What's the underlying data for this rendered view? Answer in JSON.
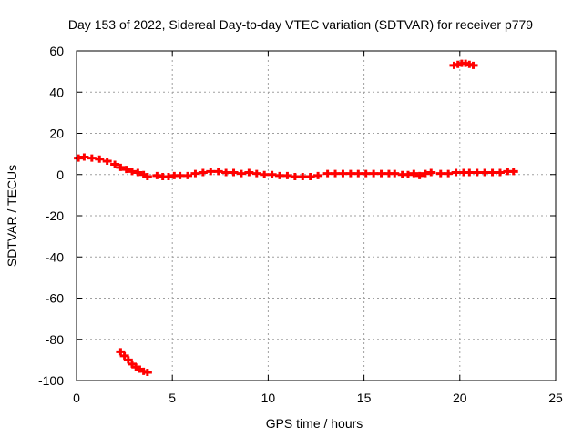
{
  "chart_data": {
    "type": "scatter",
    "title": "Day 153 of 2022, Sidereal Day-to-day VTEC variation (SDTVAR) for receiver p779",
    "xlabel": "GPS time / hours",
    "ylabel": "SDTVAR / TECUs",
    "xlim": [
      0,
      25
    ],
    "ylim": [
      -100,
      60
    ],
    "xticks": [
      0,
      5,
      10,
      15,
      20,
      25
    ],
    "yticks": [
      -100,
      -80,
      -60,
      -40,
      -20,
      0,
      20,
      40,
      60
    ],
    "xtick_labels": [
      "0",
      "5",
      "10",
      "15",
      "20",
      "25"
    ],
    "ytick_labels": [
      "-100",
      "-80",
      "-60",
      "-40",
      "-20",
      "0",
      "20",
      "40",
      "60"
    ],
    "grid": true,
    "marker_color": "#ff0000",
    "series": [
      {
        "name": "SDTVAR",
        "x": [
          0.1,
          0.4,
          0.8,
          1.2,
          1.6,
          2.0,
          2.3,
          2.6,
          2.9,
          3.2,
          3.5,
          3.7,
          4.2,
          4.5,
          4.8,
          5.1,
          5.4,
          5.8,
          6.2,
          6.6,
          7.0,
          7.4,
          7.8,
          8.2,
          8.6,
          9.0,
          9.4,
          9.8,
          10.2,
          10.6,
          11.0,
          11.4,
          11.8,
          12.2,
          12.6,
          13.1,
          13.5,
          13.9,
          14.3,
          14.7,
          15.1,
          15.5,
          15.9,
          16.3,
          16.6,
          17.0,
          17.3,
          17.6,
          17.9,
          18.2,
          18.5,
          19.0,
          19.4,
          19.8,
          20.2,
          20.5,
          20.9,
          21.3,
          21.7,
          22.1,
          22.5,
          22.8,
          2.3,
          2.5,
          2.7,
          2.9,
          3.1,
          3.3,
          3.5,
          3.7,
          19.7,
          19.9,
          20.1,
          20.3,
          20.5,
          20.7
        ],
        "y": [
          8,
          8.5,
          8,
          7.5,
          6.5,
          5,
          3.5,
          2.5,
          1.5,
          1,
          0,
          -1,
          -0.5,
          -1,
          -1,
          -0.5,
          -0.5,
          -0.5,
          0.5,
          1,
          1.5,
          1.5,
          1,
          1,
          0.5,
          1,
          0.5,
          0,
          0,
          -0.5,
          -0.5,
          -1,
          -1,
          -1,
          -0.5,
          0.5,
          0.5,
          0.5,
          0.5,
          0.5,
          0.5,
          0.5,
          0.5,
          0.5,
          0.5,
          0,
          0,
          0.5,
          -0.5,
          0.5,
          1,
          0.5,
          0.5,
          1,
          1,
          1,
          1,
          1,
          1,
          1,
          1.5,
          1.5,
          -86,
          -88,
          -90,
          -92,
          -93.5,
          -94.5,
          -95.5,
          -96,
          53,
          53.5,
          54,
          54,
          53.5,
          53
        ]
      }
    ]
  }
}
